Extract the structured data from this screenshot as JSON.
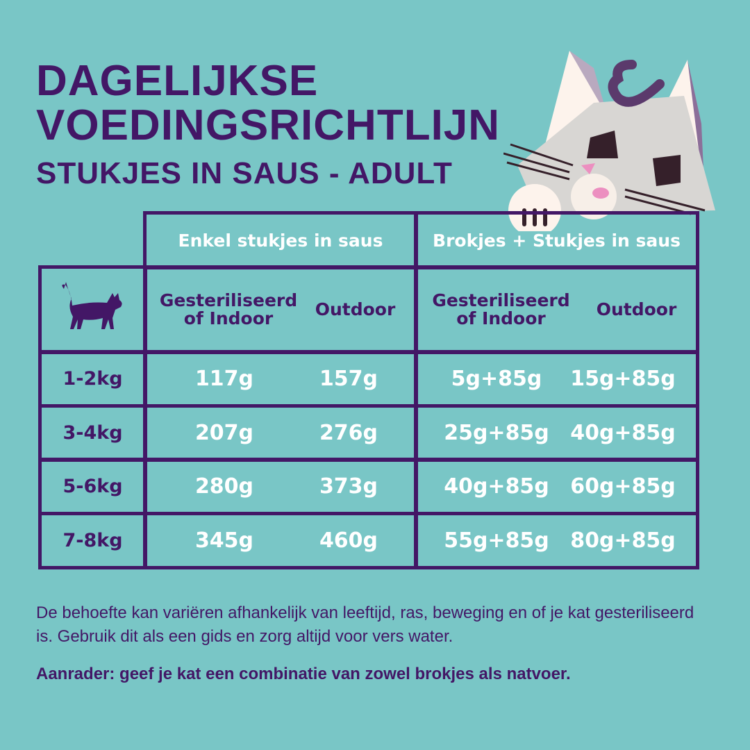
{
  "title": {
    "line1": "DAGELIJKSE",
    "line2": "VOEDINGSRICHTLIJN",
    "subtitle": "STUKJES IN SAUS - ADULT"
  },
  "colors": {
    "background": "#79c6c6",
    "accent": "#431766",
    "value_text": "#ffffff"
  },
  "mascot_icon": "cartoon-cat-peeking",
  "table": {
    "groups": [
      "Enkel stukjes in saus",
      "Brokjes + Stukjes in saus"
    ],
    "row_header_icon": "cat-silhouette-icon",
    "subheaders": [
      [
        "Gesteriliseerd",
        "of Indoor"
      ],
      [
        "Outdoor"
      ],
      [
        "Gesteriliseerd",
        "of Indoor"
      ],
      [
        "Outdoor"
      ]
    ],
    "rows": [
      {
        "weight": "1-2kg",
        "values": [
          "117g",
          "157g",
          "5g+85g",
          "15g+85g"
        ]
      },
      {
        "weight": "3-4kg",
        "values": [
          "207g",
          "276g",
          "25g+85g",
          "40g+85g"
        ]
      },
      {
        "weight": "5-6kg",
        "values": [
          "280g",
          "373g",
          "40g+85g",
          "60g+85g"
        ]
      },
      {
        "weight": "7-8kg",
        "values": [
          "345g",
          "460g",
          "55g+85g",
          "80g+85g"
        ]
      }
    ]
  },
  "notes": {
    "p1": "De behoefte kan variëren afhankelijk van leeftijd, ras, beweging en of je kat gesteriliseerd is. Gebruik dit als een gids en zorg altijd voor vers water.",
    "p2": "Aanrader: geef je kat een combinatie van zowel brokjes als natvoer."
  }
}
